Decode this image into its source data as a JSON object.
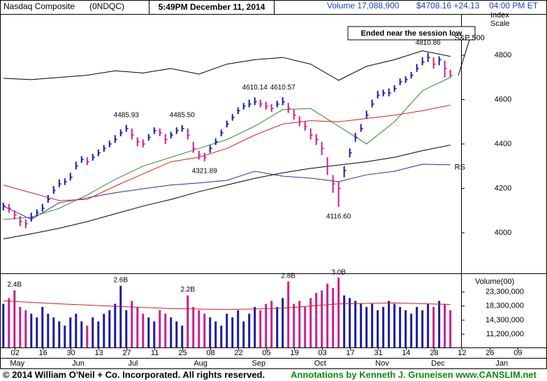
{
  "header": {
    "name": "Nasdaq Composite",
    "symbol": "(0NDQC)",
    "datetime": "5:49PM December 11, 2014",
    "volume": "Volume 17,088,900",
    "price": "$4708.16 +24.13",
    "time": "04:00 PM ET"
  },
  "chart_data": {
    "type": "stock",
    "xlim": [
      -0.6,
      97.3
    ],
    "xticks": [
      {
        "value": 2.1,
        "label": "02"
      },
      {
        "value": 7.1,
        "label": "16"
      },
      {
        "value": 12.1,
        "label": "30"
      },
      {
        "value": 17.1,
        "label": "13"
      },
      {
        "value": 22.1,
        "label": "27"
      },
      {
        "value": 27.1,
        "label": "11"
      },
      {
        "value": 32.1,
        "label": "25"
      },
      {
        "value": 37.1,
        "label": "08"
      },
      {
        "value": 42.1,
        "label": "22"
      },
      {
        "value": 47.1,
        "label": "05"
      },
      {
        "value": 52.1,
        "label": "19"
      },
      {
        "value": 57.1,
        "label": "03"
      },
      {
        "value": 62.1,
        "label": "17"
      },
      {
        "value": 67.1,
        "label": "31"
      },
      {
        "value": 72.1,
        "label": "14"
      },
      {
        "value": 77.1,
        "label": "28"
      },
      {
        "value": 82.1,
        "label": "12"
      },
      {
        "value": 87.1,
        "label": "26"
      },
      {
        "value": 92.1,
        "label": "09"
      }
    ],
    "months": [
      {
        "value": 2.5,
        "label": "May"
      },
      {
        "value": 13.4,
        "label": "Jun"
      },
      {
        "value": 23.2,
        "label": "Jul"
      },
      {
        "value": 35.3,
        "label": "Aug"
      },
      {
        "value": 45.7,
        "label": "Sep"
      },
      {
        "value": 56.7,
        "label": "Oct"
      },
      {
        "value": 67.8,
        "label": "Nov"
      },
      {
        "value": 77.8,
        "label": "Dec"
      },
      {
        "value": 89.2,
        "label": "Jan"
      }
    ],
    "ylim": [
      3820,
      4986
    ],
    "yticks": [
      4000,
      4200,
      4400,
      4600,
      4800
    ],
    "scale_label": [
      "Index",
      "Scale"
    ],
    "price": {
      "up_color": "#1a1aa6",
      "down_color": "#cc1f8a",
      "high": [
        4135,
        4130,
        4100,
        4075,
        4060,
        4090,
        4105,
        4130,
        4170,
        4210,
        4240,
        4245,
        4270,
        4320,
        4345,
        4340,
        4355,
        4375,
        4395,
        4415,
        4440,
        4465,
        4485.93,
        4470,
        4430,
        4420,
        4445,
        4475,
        4470,
        4445,
        4455,
        4475,
        4485.5,
        4470,
        4410,
        4370,
        4360,
        4395,
        4425,
        4465,
        4505,
        4535,
        4565,
        4585,
        4600,
        4610.14,
        4600,
        4590,
        4580,
        4595,
        4610.57,
        4585,
        4555,
        4525,
        4500,
        4470,
        4445,
        4410,
        4340,
        4260,
        4230,
        4300,
        4380,
        4450,
        4490,
        4550,
        4600,
        4640,
        4645,
        4650,
        4665,
        4695,
        4705,
        4725,
        4760,
        4790,
        4810.86,
        4790,
        4795,
        4775,
        4735
      ],
      "low": [
        4100,
        4090,
        4060,
        4030,
        4020,
        4050,
        4075,
        4095,
        4135,
        4175,
        4205,
        4215,
        4235,
        4285,
        4315,
        4305,
        4325,
        4345,
        4365,
        4385,
        4405,
        4435,
        4455,
        4420,
        4390,
        4385,
        4415,
        4445,
        4435,
        4400,
        4425,
        4445,
        4455,
        4420,
        4360,
        4330,
        4321.89,
        4360,
        4395,
        4435,
        4475,
        4505,
        4535,
        4555,
        4565,
        4575,
        4565,
        4555,
        4545,
        4565,
        4575,
        4540,
        4510,
        4480,
        4460,
        4420,
        4395,
        4350,
        4260,
        4180,
        4116.6,
        4250,
        4340,
        4410,
        4455,
        4515,
        4565,
        4605,
        4615,
        4615,
        4635,
        4665,
        4675,
        4695,
        4725,
        4755,
        4770,
        4740,
        4755,
        4700,
        4700
      ],
      "close": [
        4120,
        4110,
        4080,
        4050,
        4040,
        4070,
        4090,
        4110,
        4150,
        4190,
        4220,
        4230,
        4250,
        4300,
        4330,
        4320,
        4340,
        4360,
        4380,
        4400,
        4420,
        4450,
        4470,
        4440,
        4410,
        4400,
        4430,
        4460,
        4450,
        4420,
        4440,
        4460,
        4470,
        4440,
        4380,
        4350,
        4340,
        4380,
        4410,
        4450,
        4490,
        4520,
        4550,
        4570,
        4580,
        4590,
        4580,
        4570,
        4560,
        4580,
        4590,
        4560,
        4530,
        4500,
        4480,
        4440,
        4420,
        4380,
        4300,
        4220,
        4200,
        4280,
        4360,
        4430,
        4470,
        4530,
        4580,
        4620,
        4630,
        4630,
        4650,
        4680,
        4690,
        4710,
        4740,
        4770,
        4790,
        4760,
        4780,
        4740,
        4708
      ],
      "high_labels": {
        "22": "4485.93",
        "32": "4485.50",
        "45": "4610.14",
        "50": "4610.57",
        "76": "4810.86"
      },
      "low_labels": {
        "36": "4321.89",
        "60": "4116.60"
      }
    },
    "lines": [
      {
        "name": "S&P 500",
        "color": "#000000",
        "x": [
          0,
          5,
          10,
          15,
          20,
          25,
          30,
          35,
          40,
          45,
          50,
          55,
          60,
          65,
          70,
          75,
          80
        ],
        "values": [
          4696,
          4690,
          4700,
          4710,
          4730,
          4720,
          4740,
          4715,
          4760,
          4780,
          4790,
          4760,
          4687,
          4750,
          4780,
          4820,
          4795
        ]
      },
      {
        "name": "RS",
        "color": "#2a2aa8",
        "x": [
          0,
          5,
          10,
          15,
          20,
          25,
          30,
          35,
          40,
          45,
          50,
          55,
          60,
          65,
          70,
          75,
          80
        ],
        "values": [
          4120,
          4060,
          4135,
          4157,
          4180,
          4198,
          4215,
          4224,
          4236,
          4277,
          4255,
          4246,
          4230,
          4261,
          4277,
          4309,
          4306
        ]
      },
      {
        "color": "#2e8b2e",
        "x": [
          0,
          5,
          10,
          15,
          20,
          25,
          30,
          35,
          40,
          45,
          50,
          55,
          60,
          65,
          70,
          75,
          80
        ],
        "values": [
          4060,
          4070,
          4110,
          4170,
          4240,
          4300,
          4340,
          4380,
          4420,
          4480,
          4555,
          4560,
          4480,
          4400,
          4500,
          4640,
          4700
        ]
      },
      {
        "color": "#d42020",
        "x": [
          0,
          5,
          10,
          15,
          20,
          25,
          30,
          35,
          40,
          45,
          50,
          55,
          60,
          65,
          70,
          75,
          80
        ],
        "values": [
          4215,
          4180,
          4145,
          4150,
          4210,
          4265,
          4320,
          4340,
          4380,
          4440,
          4490,
          4505,
          4500,
          4515,
          4530,
          4550,
          4575
        ]
      },
      {
        "color": "#000000",
        "x": [
          0,
          5,
          10,
          15,
          20,
          25,
          30,
          35,
          40,
          45,
          50,
          55,
          60,
          65,
          70,
          75,
          80
        ],
        "values": [
          3972,
          3995,
          4020,
          4050,
          4085,
          4120,
          4150,
          4185,
          4215,
          4245,
          4270,
          4290,
          4305,
          4320,
          4340,
          4370,
          4395
        ]
      }
    ],
    "annotation": "Ended near the session low",
    "volume": {
      "label": "Volume(00)",
      "log": true,
      "ylim": [
        8900000,
        31900000
      ],
      "yticks": [
        {
          "value": 23300000,
          "label": "23,300,000"
        },
        {
          "value": 18300000,
          "label": "18,300,000"
        },
        {
          "value": 14300000,
          "label": "14,300,000"
        },
        {
          "value": 11200000,
          "label": "11,200,000"
        }
      ],
      "values": [
        19000000,
        21000000,
        24000000,
        18000000,
        17000000,
        16000000,
        15000000,
        18000000,
        16000000,
        15000000,
        14000000,
        13000000,
        15000000,
        16000000,
        14000000,
        13000000,
        15000000,
        14000000,
        16000000,
        17000000,
        19000000,
        26000000,
        17000000,
        20000000,
        18000000,
        16000000,
        15000000,
        14000000,
        17000000,
        16000000,
        15000000,
        14000000,
        13000000,
        22000000,
        18000000,
        17000000,
        16000000,
        15000000,
        14000000,
        13000000,
        16000000,
        15000000,
        17000000,
        14000000,
        16000000,
        18000000,
        17000000,
        19000000,
        20000000,
        18000000,
        21000000,
        28000000,
        19000000,
        20000000,
        18000000,
        21000000,
        23000000,
        24000000,
        27000000,
        25000000,
        30000000,
        22000000,
        21000000,
        20000000,
        19000000,
        18000000,
        19000000,
        17000000,
        18000000,
        20000000,
        19000000,
        18000000,
        17000000,
        16000000,
        18000000,
        17000000,
        19000000,
        18000000,
        20000000,
        19000000,
        17000000
      ],
      "notes": {
        "2": "2.4B",
        "21": "2.6B",
        "33": "2.2B",
        "51": "2.8B",
        "60": "3.0B"
      },
      "ma": {
        "color": "#d42020",
        "x": [
          0,
          10,
          20,
          30,
          40,
          50,
          60,
          70,
          80
        ],
        "values": [
          20000000,
          19000000,
          18200000,
          17500000,
          17200000,
          17600000,
          19000000,
          19300000,
          18800000
        ]
      }
    }
  },
  "footer": {
    "copyright": "© 2014 William O'Neil + Co. Incorporated. All rights reserved.",
    "credit": "Annotations by Kenneth J. Gruneisen www.CANSLIM.net"
  }
}
